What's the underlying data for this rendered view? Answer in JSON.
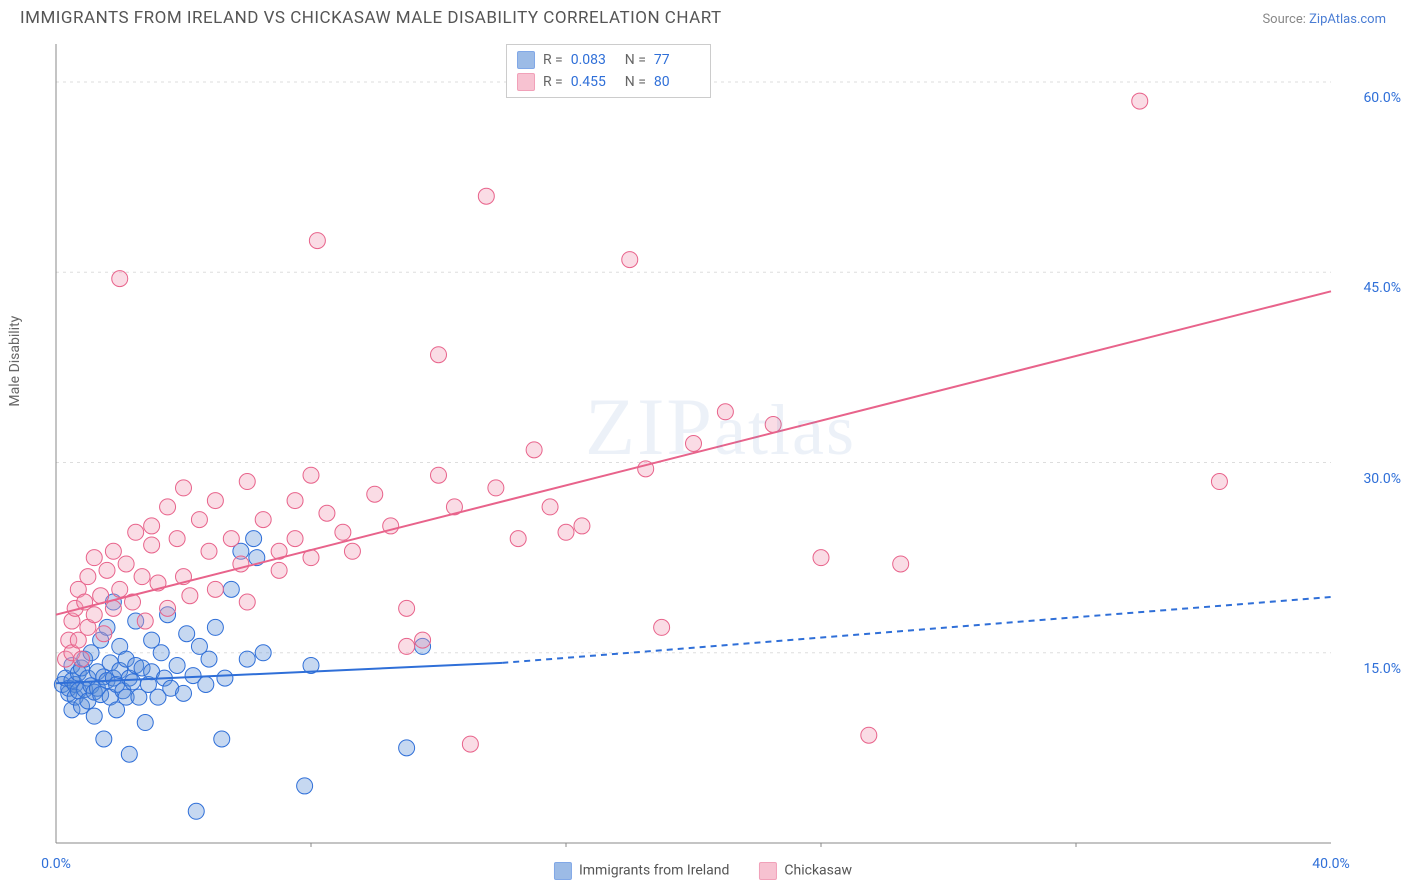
{
  "title": "IMMIGRANTS FROM IRELAND VS CHICKASAW MALE DISABILITY CORRELATION CHART",
  "source_label": "Source:",
  "source_name": "ZipAtlas.com",
  "watermark": "ZIPatlas",
  "ylabel": "Male Disability",
  "chart": {
    "type": "scatter-with-regression",
    "xlim": [
      0,
      40
    ],
    "ylim": [
      0,
      63
    ],
    "x_ticks": [
      0,
      40
    ],
    "x_tick_labels": [
      "0.0%",
      "40.0%"
    ],
    "x_minor_ticks": [
      8,
      16,
      24,
      32
    ],
    "y_ticks": [
      15,
      30,
      45,
      60
    ],
    "y_tick_labels": [
      "15.0%",
      "30.0%",
      "45.0%",
      "60.0%"
    ],
    "background": "#ffffff",
    "grid_color": "#dddddd",
    "axis_color": "#888888",
    "marker_radius": 8,
    "marker_stroke_width": 1,
    "marker_fill_opacity": 0.35,
    "line_width": 2,
    "series": [
      {
        "name": "Immigrants from Ireland",
        "color": "#5b8ed6",
        "stroke": "#2f6fd8",
        "R": "0.083",
        "N": "77",
        "regression": {
          "x1": 0,
          "y1": 12.6,
          "x2": 14,
          "y2": 14.2,
          "dash_x2": 40,
          "dash_y2": 19.4
        },
        "points": [
          [
            0.2,
            12.5
          ],
          [
            0.3,
            13.0
          ],
          [
            0.4,
            11.8
          ],
          [
            0.4,
            12.2
          ],
          [
            0.5,
            12.8
          ],
          [
            0.5,
            14.0
          ],
          [
            0.5,
            10.5
          ],
          [
            0.6,
            12.5
          ],
          [
            0.6,
            11.5
          ],
          [
            0.7,
            13.4
          ],
          [
            0.7,
            12.0
          ],
          [
            0.8,
            13.8
          ],
          [
            0.8,
            10.8
          ],
          [
            0.9,
            12.1
          ],
          [
            0.9,
            14.5
          ],
          [
            1.0,
            11.2
          ],
          [
            1.0,
            13.0
          ],
          [
            1.1,
            12.4
          ],
          [
            1.1,
            15.0
          ],
          [
            1.2,
            11.9
          ],
          [
            1.2,
            10.0
          ],
          [
            1.3,
            13.5
          ],
          [
            1.3,
            12.2
          ],
          [
            1.4,
            16.0
          ],
          [
            1.4,
            11.7
          ],
          [
            1.5,
            13.1
          ],
          [
            1.5,
            8.2
          ],
          [
            1.6,
            12.8
          ],
          [
            1.6,
            17.0
          ],
          [
            1.7,
            11.5
          ],
          [
            1.7,
            14.2
          ],
          [
            1.8,
            19.0
          ],
          [
            1.8,
            13.0
          ],
          [
            1.9,
            10.5
          ],
          [
            1.9,
            12.5
          ],
          [
            2.0,
            15.5
          ],
          [
            2.0,
            13.6
          ],
          [
            2.1,
            12.0
          ],
          [
            2.2,
            14.5
          ],
          [
            2.2,
            11.5
          ],
          [
            2.3,
            13.0
          ],
          [
            2.3,
            7.0
          ],
          [
            2.4,
            12.7
          ],
          [
            2.5,
            17.5
          ],
          [
            2.5,
            14.0
          ],
          [
            2.6,
            11.5
          ],
          [
            2.7,
            13.8
          ],
          [
            2.8,
            9.5
          ],
          [
            2.9,
            12.5
          ],
          [
            3.0,
            16.0
          ],
          [
            3.0,
            13.5
          ],
          [
            3.2,
            11.5
          ],
          [
            3.3,
            15.0
          ],
          [
            3.4,
            13.0
          ],
          [
            3.5,
            18.0
          ],
          [
            3.6,
            12.2
          ],
          [
            3.8,
            14.0
          ],
          [
            4.0,
            11.8
          ],
          [
            4.1,
            16.5
          ],
          [
            4.3,
            13.2
          ],
          [
            4.4,
            2.5
          ],
          [
            4.5,
            15.5
          ],
          [
            4.7,
            12.5
          ],
          [
            4.8,
            14.5
          ],
          [
            5.0,
            17.0
          ],
          [
            5.2,
            8.2
          ],
          [
            5.3,
            13.0
          ],
          [
            5.5,
            20.0
          ],
          [
            5.8,
            23.0
          ],
          [
            6.0,
            14.5
          ],
          [
            6.2,
            24.0
          ],
          [
            6.3,
            22.5
          ],
          [
            6.5,
            15.0
          ],
          [
            7.8,
            4.5
          ],
          [
            8.0,
            14.0
          ],
          [
            11.0,
            7.5
          ],
          [
            11.5,
            15.5
          ]
        ]
      },
      {
        "name": "Chickasaw",
        "color": "#f29bb4",
        "stroke": "#e8638b",
        "R": "0.455",
        "N": "80",
        "regression": {
          "x1": 0,
          "y1": 18.0,
          "x2": 40,
          "y2": 43.5
        },
        "points": [
          [
            0.3,
            14.5
          ],
          [
            0.4,
            16.0
          ],
          [
            0.5,
            15.0
          ],
          [
            0.5,
            17.5
          ],
          [
            0.6,
            18.5
          ],
          [
            0.7,
            16.0
          ],
          [
            0.7,
            20.0
          ],
          [
            0.8,
            14.5
          ],
          [
            0.9,
            19.0
          ],
          [
            1.0,
            17.0
          ],
          [
            1.0,
            21.0
          ],
          [
            1.2,
            18.0
          ],
          [
            1.2,
            22.5
          ],
          [
            1.4,
            19.5
          ],
          [
            1.5,
            16.5
          ],
          [
            1.6,
            21.5
          ],
          [
            1.8,
            18.5
          ],
          [
            1.8,
            23.0
          ],
          [
            2.0,
            20.0
          ],
          [
            2.0,
            44.5
          ],
          [
            2.2,
            22.0
          ],
          [
            2.4,
            19.0
          ],
          [
            2.5,
            24.5
          ],
          [
            2.7,
            21.0
          ],
          [
            2.8,
            17.5
          ],
          [
            3.0,
            23.5
          ],
          [
            3.0,
            25.0
          ],
          [
            3.2,
            20.5
          ],
          [
            3.5,
            26.5
          ],
          [
            3.5,
            18.5
          ],
          [
            3.8,
            24.0
          ],
          [
            4.0,
            28.0
          ],
          [
            4.0,
            21.0
          ],
          [
            4.2,
            19.5
          ],
          [
            4.5,
            25.5
          ],
          [
            4.8,
            23.0
          ],
          [
            5.0,
            27.0
          ],
          [
            5.0,
            20.0
          ],
          [
            5.5,
            24.0
          ],
          [
            5.8,
            22.0
          ],
          [
            6.0,
            28.5
          ],
          [
            6.0,
            19.0
          ],
          [
            6.5,
            25.5
          ],
          [
            7.0,
            23.0
          ],
          [
            7.0,
            21.5
          ],
          [
            7.5,
            27.0
          ],
          [
            7.5,
            24.0
          ],
          [
            8.0,
            29.0
          ],
          [
            8.0,
            22.5
          ],
          [
            8.2,
            47.5
          ],
          [
            8.5,
            26.0
          ],
          [
            9.0,
            24.5
          ],
          [
            9.3,
            23.0
          ],
          [
            10.0,
            27.5
          ],
          [
            10.5,
            25.0
          ],
          [
            11.0,
            18.5
          ],
          [
            11.0,
            15.5
          ],
          [
            11.5,
            16.0
          ],
          [
            12.0,
            38.5
          ],
          [
            12.0,
            29.0
          ],
          [
            12.5,
            26.5
          ],
          [
            13.0,
            7.8
          ],
          [
            13.5,
            51.0
          ],
          [
            13.8,
            28.0
          ],
          [
            14.5,
            24.0
          ],
          [
            15.0,
            31.0
          ],
          [
            15.5,
            26.5
          ],
          [
            16.0,
            24.5
          ],
          [
            16.5,
            25.0
          ],
          [
            18.0,
            46.0
          ],
          [
            18.5,
            29.5
          ],
          [
            19.0,
            17.0
          ],
          [
            20.0,
            31.5
          ],
          [
            21.0,
            34.0
          ],
          [
            22.5,
            33.0
          ],
          [
            24.0,
            22.5
          ],
          [
            25.5,
            8.5
          ],
          [
            26.5,
            22.0
          ],
          [
            34.0,
            58.5
          ],
          [
            36.5,
            28.5
          ]
        ]
      }
    ]
  },
  "corr_legend": {
    "R_label": "R =",
    "N_label": "N ="
  }
}
